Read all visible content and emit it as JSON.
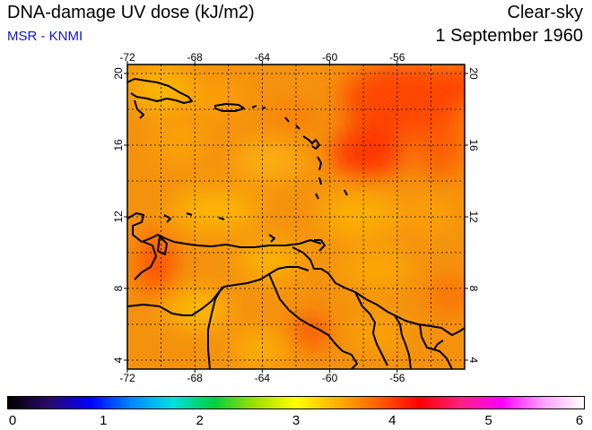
{
  "title": "DNA-damage UV dose (kJ/m2)",
  "subtitle": "MSR - KNMI",
  "condition": "Clear-sky",
  "date": "1 September 1960",
  "map": {
    "lon_range": [
      -72,
      -52
    ],
    "lat_range": [
      3.5,
      20.5
    ],
    "grid_lons": [
      -72,
      -70,
      -68,
      -66,
      -64,
      -62,
      -60,
      -58,
      -56,
      -54
    ],
    "grid_lats": [
      4,
      6,
      8,
      10,
      12,
      14,
      16,
      18,
      20
    ],
    "lon_tick_labels": [
      "-72",
      "-68",
      "-64",
      "-60",
      "-56"
    ],
    "lat_tick_labels": [
      "4",
      "8",
      "12",
      "16",
      "20"
    ],
    "base_color": "#f4920e",
    "coastline_color": "#000000"
  },
  "colorbar": {
    "min": 0,
    "max": 6,
    "tick_labels": [
      "0",
      "1",
      "2",
      "3",
      "4",
      "5",
      "6"
    ],
    "colors": [
      "#000000",
      "#2a0a6a",
      "#0000ff",
      "#0088ff",
      "#00e0e0",
      "#00d040",
      "#a0e000",
      "#ffff00",
      "#ffb000",
      "#ff6000",
      "#ff0000",
      "#ff2080",
      "#ff00ff",
      "#ffa0ff",
      "#ffffff"
    ]
  }
}
